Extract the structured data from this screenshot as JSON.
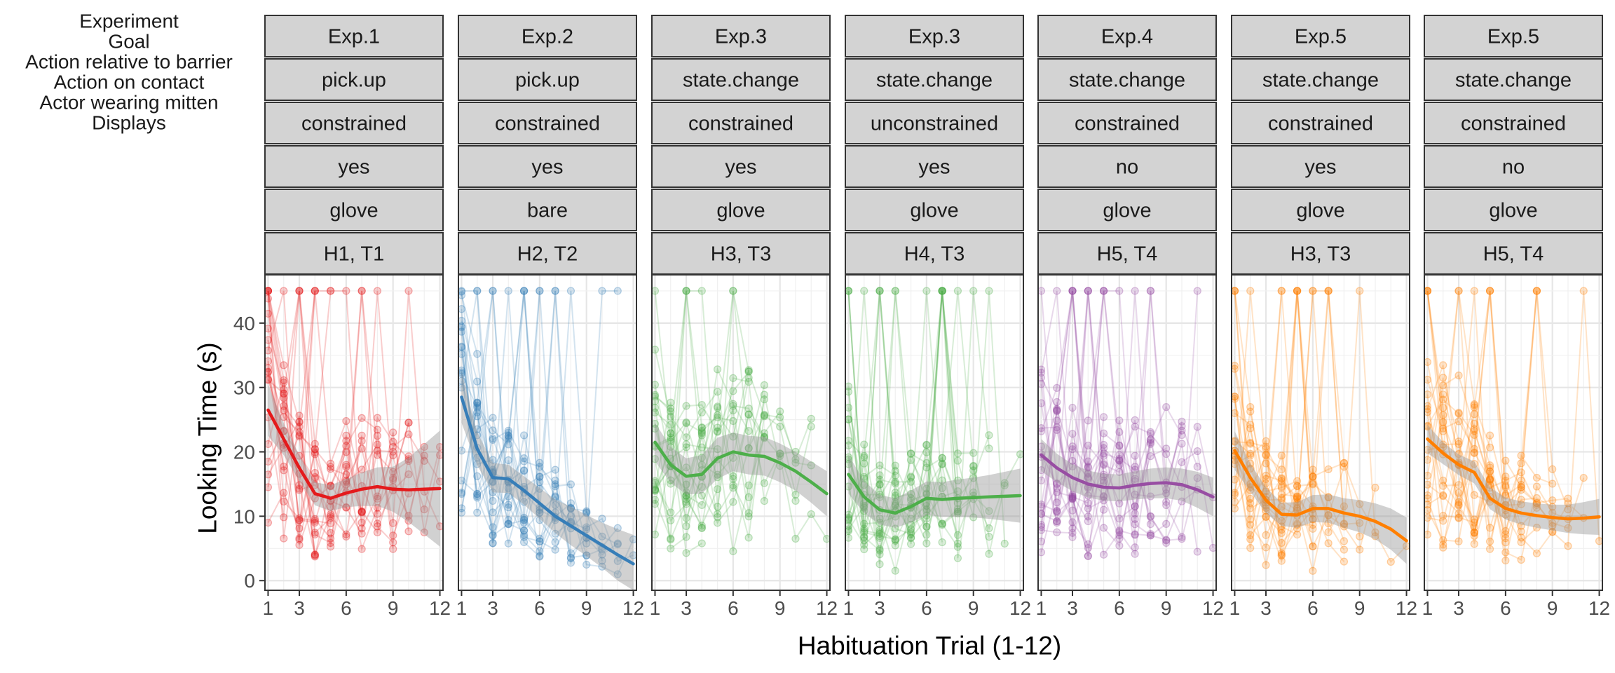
{
  "chart_data": {
    "type": "line",
    "xlabel": "Habituation Trial (1-12)",
    "ylabel": "Looking Time (s)",
    "xlim": [
      0.8,
      12.2
    ],
    "ylim": [
      -1.5,
      47.5
    ],
    "x_ticks": [
      1,
      3,
      6,
      9,
      12
    ],
    "y_ticks": [
      0,
      10,
      20,
      30,
      40
    ],
    "grid": true,
    "legend": "none",
    "facet_row_labels": [
      "Experiment",
      "Goal",
      "Action relative to barrier",
      "Action on contact",
      "Actor wearing mitten",
      "Displays"
    ],
    "panels": [
      {
        "experiment": "Exp.1",
        "goal": "pick.up",
        "barrier": "constrained",
        "contact": "yes",
        "mitten": "glove",
        "displays": "H1, T1",
        "color": "#E41A1C",
        "smooth": [
          [
            1,
            26.5
          ],
          [
            2,
            22
          ],
          [
            3,
            17.5
          ],
          [
            4,
            13.5
          ],
          [
            5,
            12.8
          ],
          [
            6,
            13.6
          ],
          [
            7,
            14.2
          ],
          [
            8,
            14.6
          ],
          [
            9,
            14.2
          ],
          [
            10,
            14.1
          ],
          [
            11,
            14.2
          ],
          [
            12,
            14.3
          ]
        ],
        "band": [
          [
            1,
            4
          ],
          [
            2,
            2.5
          ],
          [
            3,
            2
          ],
          [
            4,
            1.8
          ],
          [
            5,
            2
          ],
          [
            6,
            2.2
          ],
          [
            7,
            2.6
          ],
          [
            8,
            3
          ],
          [
            9,
            3.5
          ],
          [
            10,
            5
          ],
          [
            11,
            7
          ],
          [
            12,
            9
          ]
        ]
      },
      {
        "experiment": "Exp.2",
        "goal": "pick.up",
        "barrier": "constrained",
        "contact": "yes",
        "mitten": "bare",
        "displays": "H2, T2",
        "color": "#377EB8",
        "smooth": [
          [
            1,
            28.5
          ],
          [
            2,
            20.5
          ],
          [
            3,
            16
          ],
          [
            4,
            15.8
          ],
          [
            5,
            14
          ],
          [
            6,
            12
          ],
          [
            7,
            10
          ],
          [
            8,
            8.5
          ],
          [
            9,
            7
          ],
          [
            10,
            5.5
          ],
          [
            11,
            4
          ],
          [
            12,
            2.6
          ]
        ],
        "band": [
          [
            1,
            4
          ],
          [
            2,
            2.6
          ],
          [
            3,
            2.3
          ],
          [
            4,
            2.2
          ],
          [
            5,
            2.2
          ],
          [
            6,
            2.4
          ],
          [
            7,
            2.6
          ],
          [
            8,
            3
          ],
          [
            9,
            3.2
          ],
          [
            10,
            3.5
          ],
          [
            11,
            4
          ],
          [
            12,
            4.5
          ]
        ]
      },
      {
        "experiment": "Exp.3",
        "goal": "state.change",
        "barrier": "constrained",
        "contact": "yes",
        "mitten": "glove",
        "displays": "H3, T3",
        "color": "#4DAF4A",
        "smooth": [
          [
            1,
            21.5
          ],
          [
            2,
            18
          ],
          [
            3,
            16.2
          ],
          [
            4,
            16.5
          ],
          [
            5,
            19
          ],
          [
            6,
            20
          ],
          [
            7,
            19.5
          ],
          [
            8,
            19.3
          ],
          [
            9,
            18.3
          ],
          [
            10,
            17
          ],
          [
            11,
            15.3
          ],
          [
            12,
            13.5
          ]
        ],
        "band": [
          [
            1,
            3
          ],
          [
            2,
            2.8
          ],
          [
            3,
            2.8
          ],
          [
            4,
            3
          ],
          [
            5,
            3.2
          ],
          [
            6,
            3
          ],
          [
            7,
            3
          ],
          [
            8,
            3
          ],
          [
            9,
            3
          ],
          [
            10,
            3
          ],
          [
            11,
            3.2
          ],
          [
            12,
            3.5
          ]
        ]
      },
      {
        "experiment": "Exp.3",
        "goal": "state.change",
        "barrier": "unconstrained",
        "contact": "yes",
        "mitten": "glove",
        "displays": "H4, T3",
        "color": "#4DAF4A",
        "smooth": [
          [
            1,
            16.5
          ],
          [
            2,
            13
          ],
          [
            3,
            11
          ],
          [
            4,
            10.5
          ],
          [
            5,
            11.5
          ],
          [
            6,
            12.8
          ],
          [
            7,
            12.6
          ],
          [
            8,
            12.8
          ],
          [
            9,
            12.9
          ],
          [
            10,
            13
          ],
          [
            11,
            13.1
          ],
          [
            12,
            13.2
          ]
        ],
        "band": [
          [
            1,
            3
          ],
          [
            2,
            2.5
          ],
          [
            3,
            2.3
          ],
          [
            4,
            2.3
          ],
          [
            5,
            2.5
          ],
          [
            6,
            2.6
          ],
          [
            7,
            2.7
          ],
          [
            8,
            2.9
          ],
          [
            9,
            3.1
          ],
          [
            10,
            3.4
          ],
          [
            11,
            3.8
          ],
          [
            12,
            4.2
          ]
        ]
      },
      {
        "experiment": "Exp.4",
        "goal": "state.change",
        "barrier": "constrained",
        "contact": "no",
        "mitten": "glove",
        "displays": "H5, T4",
        "color": "#984EA3",
        "smooth": [
          [
            1,
            19.5
          ],
          [
            2,
            17.5
          ],
          [
            3,
            16
          ],
          [
            4,
            15
          ],
          [
            5,
            14.5
          ],
          [
            6,
            14.4
          ],
          [
            7,
            14.8
          ],
          [
            8,
            15.1
          ],
          [
            9,
            15.2
          ],
          [
            10,
            14.9
          ],
          [
            11,
            14.1
          ],
          [
            12,
            13
          ]
        ],
        "band": [
          [
            1,
            2.5
          ],
          [
            2,
            2.2
          ],
          [
            3,
            2.1
          ],
          [
            4,
            2.1
          ],
          [
            5,
            2.1
          ],
          [
            6,
            2.1
          ],
          [
            7,
            2.2
          ],
          [
            8,
            2.3
          ],
          [
            9,
            2.4
          ],
          [
            10,
            2.5
          ],
          [
            11,
            2.8
          ],
          [
            12,
            3
          ]
        ]
      },
      {
        "experiment": "Exp.5",
        "goal": "state.change",
        "barrier": "constrained",
        "contact": "yes",
        "mitten": "glove",
        "displays": "H3, T3",
        "color": "#FF7F00",
        "smooth": [
          [
            1,
            20.2
          ],
          [
            2,
            16
          ],
          [
            3,
            12.5
          ],
          [
            4,
            10.3
          ],
          [
            5,
            10.2
          ],
          [
            6,
            11.2
          ],
          [
            7,
            11.2
          ],
          [
            8,
            10.5
          ],
          [
            9,
            10
          ],
          [
            10,
            9.2
          ],
          [
            11,
            8
          ],
          [
            12,
            6.2
          ]
        ],
        "band": [
          [
            1,
            3
          ],
          [
            2,
            2.2
          ],
          [
            3,
            2
          ],
          [
            4,
            1.8
          ],
          [
            5,
            2
          ],
          [
            6,
            2.1
          ],
          [
            7,
            2.2
          ],
          [
            8,
            2.3
          ],
          [
            9,
            2.5
          ],
          [
            10,
            2.8
          ],
          [
            11,
            3.2
          ],
          [
            12,
            3.6
          ]
        ]
      },
      {
        "experiment": "Exp.5",
        "goal": "state.change",
        "barrier": "constrained",
        "contact": "no",
        "mitten": "glove",
        "displays": "H5, T4",
        "color": "#FF7F00",
        "smooth": [
          [
            1,
            22
          ],
          [
            2,
            19.8
          ],
          [
            3,
            18
          ],
          [
            4,
            16.8
          ],
          [
            5,
            12.8
          ],
          [
            6,
            11.2
          ],
          [
            7,
            10.5
          ],
          [
            8,
            10.1
          ],
          [
            9,
            9.8
          ],
          [
            10,
            9.6
          ],
          [
            11,
            9.7
          ],
          [
            12,
            9.9
          ]
        ],
        "band": [
          [
            1,
            2.2
          ],
          [
            2,
            1.7
          ],
          [
            3,
            1.6
          ],
          [
            4,
            1.7
          ],
          [
            5,
            1.7
          ],
          [
            6,
            1.7
          ],
          [
            7,
            1.8
          ],
          [
            8,
            1.9
          ],
          [
            9,
            2
          ],
          [
            10,
            2.2
          ],
          [
            11,
            2.5
          ],
          [
            12,
            2.8
          ]
        ]
      }
    ]
  }
}
